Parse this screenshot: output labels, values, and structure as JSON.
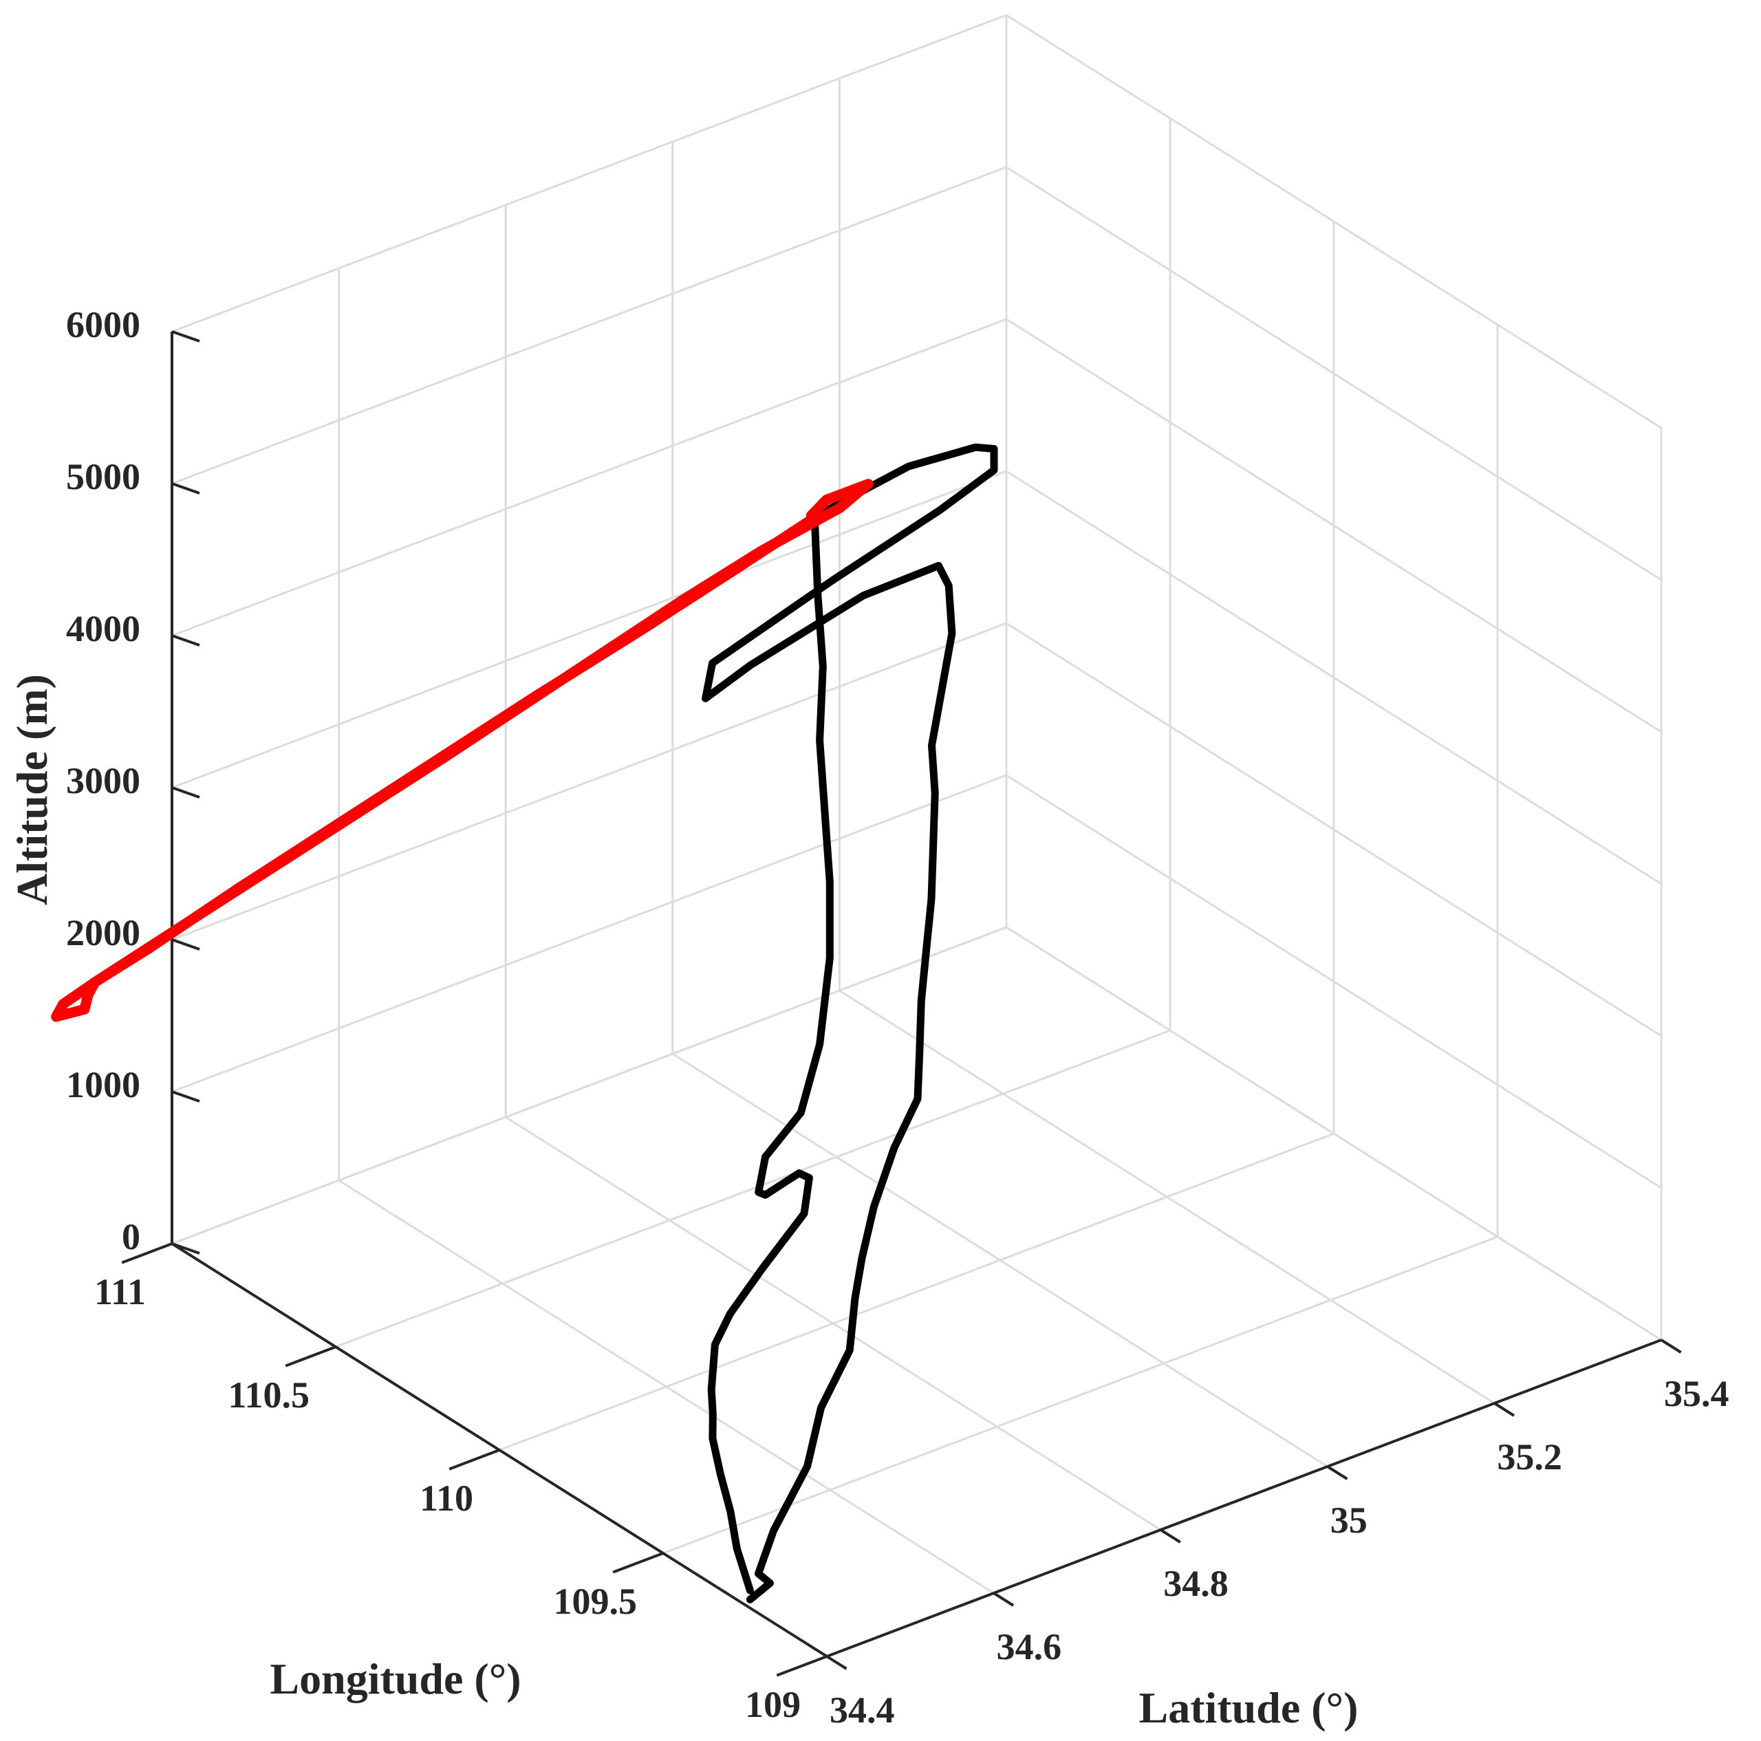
{
  "chart_data": {
    "type": "line3d",
    "title": "",
    "xlabel": "Longitude  (°)",
    "ylabel": "Latitude (°)",
    "zlabel": "Altitude (m)",
    "xlim": [
      109,
      111
    ],
    "ylim": [
      34.4,
      35.4
    ],
    "zlim": [
      0,
      6000
    ],
    "xticks": [
      109,
      109.5,
      110,
      110.5,
      111
    ],
    "xtick_labels": [
      "109",
      "109.5",
      "110",
      "110.5",
      "111"
    ],
    "yticks": [
      34.4,
      34.6,
      34.8,
      35.0,
      35.2,
      35.4
    ],
    "ytick_labels": [
      "34.4",
      "34.6",
      "34.8",
      "35",
      "35.2",
      "35.4"
    ],
    "zticks": [
      0,
      1000,
      2000,
      3000,
      4000,
      5000,
      6000
    ],
    "ztick_labels": [
      "0",
      "1000",
      "2000",
      "3000",
      "4000",
      "5000",
      "6000"
    ],
    "grid": true,
    "colors": {
      "track": "#000000",
      "highlight": "#ff0000",
      "grid": "#dcdcdc",
      "axis": "#262626"
    },
    "series": [
      {
        "color": "#000000",
        "points": [
          [
            109.26,
            34.41,
            0
          ],
          [
            109.25,
            34.43,
            80
          ],
          [
            109.26,
            34.42,
            150
          ],
          [
            109.29,
            34.45,
            330
          ],
          [
            109.34,
            34.51,
            560
          ],
          [
            109.4,
            34.55,
            780
          ],
          [
            109.44,
            34.6,
            1000
          ],
          [
            109.5,
            34.63,
            1200
          ],
          [
            109.53,
            34.65,
            1380
          ],
          [
            109.57,
            34.68,
            1600
          ],
          [
            109.61,
            34.72,
            1850
          ],
          [
            109.64,
            34.76,
            2050
          ],
          [
            109.66,
            34.77,
            2300
          ],
          [
            109.68,
            34.78,
            2600
          ],
          [
            109.69,
            34.79,
            2900
          ],
          [
            109.7,
            34.8,
            3200
          ],
          [
            109.72,
            34.81,
            3500
          ],
          [
            109.74,
            34.82,
            3800
          ],
          [
            109.75,
            34.82,
            4100
          ],
          [
            109.77,
            34.84,
            4400
          ],
          [
            109.79,
            34.86,
            4700
          ],
          [
            109.8,
            34.86,
            5000
          ],
          [
            109.78,
            34.84,
            5200
          ],
          [
            109.73,
            34.73,
            5300
          ],
          [
            109.64,
            34.56,
            5320
          ],
          [
            109.6,
            34.49,
            5300
          ],
          [
            109.63,
            34.51,
            5450
          ],
          [
            109.72,
            34.69,
            5500
          ],
          [
            109.8,
            34.85,
            5520
          ],
          [
            109.84,
            34.93,
            5560
          ],
          [
            109.84,
            34.93,
            5700
          ],
          [
            109.82,
            34.9,
            5800
          ],
          [
            109.77,
            34.8,
            5950
          ],
          [
            109.72,
            34.71,
            6000
          ],
          [
            109.7,
            34.66,
            6000
          ],
          [
            109.69,
            34.66,
            5500
          ],
          [
            109.7,
            34.67,
            5000
          ],
          [
            109.71,
            34.67,
            4500
          ],
          [
            109.72,
            34.68,
            4000
          ],
          [
            109.73,
            34.69,
            3500
          ],
          [
            109.73,
            34.69,
            3000
          ],
          [
            109.71,
            34.67,
            2500
          ],
          [
            109.64,
            34.62,
            2250
          ],
          [
            109.57,
            34.55,
            2200
          ],
          [
            109.54,
            34.53,
            2050
          ],
          [
            109.57,
            34.55,
            1950
          ],
          [
            109.62,
            34.61,
            1900
          ],
          [
            109.64,
            34.63,
            1800
          ],
          [
            109.63,
            34.62,
            1600
          ],
          [
            109.58,
            34.55,
            1450
          ],
          [
            109.55,
            34.5,
            1300
          ],
          [
            109.52,
            34.47,
            1200
          ],
          [
            109.48,
            34.45,
            1000
          ],
          [
            109.45,
            34.44,
            900
          ],
          [
            109.4,
            34.42,
            850
          ],
          [
            109.35,
            34.41,
            700
          ],
          [
            109.32,
            34.41,
            500
          ],
          [
            109.3,
            34.41,
            280
          ],
          [
            109.26,
            34.41,
            60
          ]
        ]
      },
      {
        "color": "#ff0000",
        "points": [
          [
            109.7,
            34.66,
            6000
          ],
          [
            109.64,
            34.55,
            6000
          ],
          [
            109.56,
            34.4,
            6000
          ],
          [
            109.48,
            34.24,
            6000
          ],
          [
            109.4,
            34.09,
            6000
          ],
          [
            109.32,
            33.94,
            6000
          ],
          [
            109.24,
            33.79,
            6000
          ],
          [
            109.16,
            33.65,
            6000
          ],
          [
            109.12,
            33.57,
            6000
          ],
          [
            109.09,
            33.52,
            6000
          ],
          [
            109.06,
            33.5,
            6000
          ],
          [
            109.05,
            33.53,
            6000
          ],
          [
            109.09,
            33.55,
            6000
          ],
          [
            109.12,
            33.57,
            6000
          ],
          [
            109.2,
            33.72,
            6000
          ],
          [
            109.3,
            33.91,
            6000
          ],
          [
            109.4,
            34.1,
            6000
          ],
          [
            109.5,
            34.28,
            6000
          ],
          [
            109.6,
            34.46,
            6000
          ],
          [
            109.66,
            34.58,
            6000
          ],
          [
            109.7,
            34.69,
            6000
          ],
          [
            109.74,
            34.74,
            6000
          ],
          [
            109.74,
            34.69,
            6000
          ],
          [
            109.71,
            34.66,
            6000
          ]
        ]
      }
    ]
  }
}
